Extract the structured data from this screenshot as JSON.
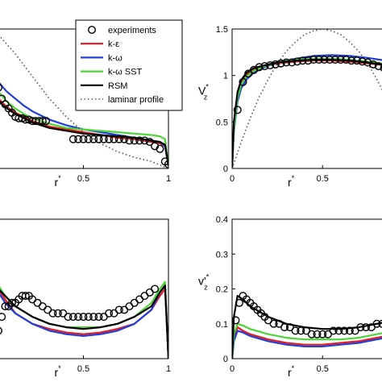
{
  "legend": {
    "placement": "top-center",
    "entries": [
      {
        "label": "experiments",
        "color": "#000000",
        "style": "marker-circle"
      },
      {
        "label": "k-ε",
        "color": "#e41a1c",
        "style": "line"
      },
      {
        "label": "k-ω",
        "color": "#1f3fd9",
        "style": "line"
      },
      {
        "label": "k-ω SST",
        "color": "#4cd636",
        "style": "line"
      },
      {
        "label": "RSM",
        "color": "#000000",
        "style": "line"
      },
      {
        "label": "laminar profile",
        "color": "#555555",
        "style": "dotted"
      }
    ]
  },
  "chart_data": [
    {
      "id": "top-left",
      "type": "line",
      "xlabel": "r",
      "xlabel_sup": "*",
      "ylabel": "",
      "xlim": [
        0,
        1
      ],
      "ylim": [
        0,
        1
      ],
      "xticks": [
        "0.5",
        "1"
      ],
      "yticks": [],
      "series": [
        {
          "name": "experiments",
          "marker": "circle",
          "x": [
            0.0,
            0.02,
            0.04,
            0.06,
            0.08,
            0.1,
            0.12,
            0.14,
            0.16,
            0.18,
            0.2,
            0.22,
            0.24,
            0.26,
            0.28,
            0.44,
            0.47,
            0.5,
            0.53,
            0.56,
            0.59,
            0.62,
            0.65,
            0.68,
            0.71,
            0.74,
            0.77,
            0.8,
            0.83,
            0.86,
            0.89,
            0.92,
            0.95,
            0.98,
            1.0
          ],
          "y": [
            0.58,
            0.5,
            0.46,
            0.43,
            0.4,
            0.37,
            0.36,
            0.36,
            0.35,
            0.35,
            0.34,
            0.34,
            0.34,
            0.34,
            0.34,
            0.21,
            0.21,
            0.21,
            0.21,
            0.21,
            0.21,
            0.21,
            0.21,
            0.21,
            0.21,
            0.21,
            0.2,
            0.2,
            0.2,
            0.2,
            0.19,
            0.16,
            0.14,
            0.05,
            0.03
          ]
        },
        {
          "name": "k-ε",
          "x": [
            0.0,
            0.05,
            0.1,
            0.15,
            0.2,
            0.3,
            0.4,
            0.5,
            0.6,
            0.7,
            0.8,
            0.9,
            0.95,
            0.98,
            1.0
          ],
          "y": [
            0.5,
            0.44,
            0.4,
            0.37,
            0.34,
            0.3,
            0.28,
            0.26,
            0.24,
            0.22,
            0.21,
            0.19,
            0.18,
            0.16,
            0.02
          ]
        },
        {
          "name": "k-ω",
          "x": [
            0.0,
            0.05,
            0.1,
            0.15,
            0.2,
            0.3,
            0.4,
            0.5,
            0.6,
            0.7,
            0.8,
            0.9,
            0.95,
            0.98,
            1.0
          ],
          "y": [
            0.62,
            0.55,
            0.5,
            0.45,
            0.41,
            0.35,
            0.31,
            0.28,
            0.26,
            0.24,
            0.22,
            0.2,
            0.19,
            0.16,
            0.02
          ]
        },
        {
          "name": "k-ω SST",
          "x": [
            0.0,
            0.05,
            0.1,
            0.15,
            0.2,
            0.3,
            0.4,
            0.5,
            0.6,
            0.7,
            0.8,
            0.9,
            0.95,
            0.98,
            1.0
          ],
          "y": [
            0.55,
            0.48,
            0.43,
            0.39,
            0.36,
            0.32,
            0.29,
            0.28,
            0.27,
            0.26,
            0.25,
            0.24,
            0.23,
            0.21,
            0.02
          ]
        },
        {
          "name": "RSM",
          "x": [
            0.0,
            0.05,
            0.1,
            0.15,
            0.2,
            0.3,
            0.4,
            0.5,
            0.6,
            0.7,
            0.8,
            0.9,
            0.95,
            0.98,
            1.0
          ],
          "y": [
            0.48,
            0.43,
            0.39,
            0.36,
            0.33,
            0.29,
            0.27,
            0.25,
            0.24,
            0.23,
            0.22,
            0.2,
            0.19,
            0.17,
            0.02
          ]
        },
        {
          "name": "laminar profile",
          "dotted": true,
          "x": [
            0.0,
            0.1,
            0.2,
            0.3,
            0.4,
            0.5,
            0.6,
            0.7,
            0.8,
            0.9,
            1.0
          ],
          "y": [
            0.96,
            0.82,
            0.66,
            0.5,
            0.37,
            0.26,
            0.18,
            0.12,
            0.08,
            0.05,
            0.0
          ]
        }
      ]
    },
    {
      "id": "top-right",
      "type": "line",
      "xlabel": "r",
      "xlabel_sup": "*",
      "ylabel": "V",
      "ylabel_sub": "z",
      "ylabel_sup": "*",
      "xlim": [
        0,
        0.9
      ],
      "ylim": [
        0,
        1.5
      ],
      "xticks": [
        "0",
        "0.5"
      ],
      "yticks": [
        "0",
        "0.5",
        "1",
        "1.5"
      ],
      "series": [
        {
          "name": "experiments",
          "marker": "circle",
          "x": [
            0.03,
            0.06,
            0.09,
            0.12,
            0.15,
            0.18,
            0.21,
            0.24,
            0.27,
            0.3,
            0.33,
            0.36,
            0.39,
            0.42,
            0.45,
            0.48,
            0.51,
            0.54,
            0.57,
            0.6,
            0.63,
            0.66,
            0.69,
            0.72,
            0.75,
            0.78,
            0.81,
            0.84,
            0.87
          ],
          "y": [
            0.63,
            0.93,
            1.02,
            1.06,
            1.09,
            1.1,
            1.11,
            1.12,
            1.13,
            1.14,
            1.14,
            1.15,
            1.16,
            1.16,
            1.17,
            1.17,
            1.17,
            1.17,
            1.17,
            1.17,
            1.17,
            1.16,
            1.16,
            1.15,
            1.14,
            1.12,
            1.1,
            1.08,
            1.06
          ]
        },
        {
          "name": "k-ε",
          "x": [
            0.0,
            0.01,
            0.03,
            0.05,
            0.08,
            0.12,
            0.18,
            0.25,
            0.35,
            0.45,
            0.55,
            0.65,
            0.75,
            0.85,
            0.9
          ],
          "y": [
            0.0,
            0.45,
            0.78,
            0.92,
            1.01,
            1.06,
            1.1,
            1.13,
            1.15,
            1.16,
            1.16,
            1.15,
            1.13,
            1.11,
            1.1
          ]
        },
        {
          "name": "k-ω",
          "x": [
            0.0,
            0.01,
            0.03,
            0.05,
            0.08,
            0.12,
            0.18,
            0.25,
            0.35,
            0.45,
            0.55,
            0.65,
            0.75,
            0.85,
            0.9
          ],
          "y": [
            0.0,
            0.4,
            0.72,
            0.86,
            0.96,
            1.03,
            1.09,
            1.14,
            1.18,
            1.21,
            1.22,
            1.21,
            1.19,
            1.16,
            1.14
          ]
        },
        {
          "name": "k-ω SST",
          "x": [
            0.0,
            0.01,
            0.03,
            0.05,
            0.08,
            0.12,
            0.18,
            0.25,
            0.35,
            0.45,
            0.55,
            0.65,
            0.75,
            0.85,
            0.9
          ],
          "y": [
            0.0,
            0.42,
            0.76,
            0.9,
            0.99,
            1.05,
            1.1,
            1.14,
            1.17,
            1.18,
            1.18,
            1.17,
            1.15,
            1.12,
            1.11
          ]
        },
        {
          "name": "RSM",
          "x": [
            0.0,
            0.01,
            0.03,
            0.05,
            0.08,
            0.12,
            0.18,
            0.25,
            0.35,
            0.45,
            0.55,
            0.65,
            0.75,
            0.85,
            0.9
          ],
          "y": [
            0.0,
            0.5,
            0.82,
            0.95,
            1.03,
            1.08,
            1.11,
            1.14,
            1.16,
            1.17,
            1.17,
            1.16,
            1.14,
            1.11,
            1.1
          ]
        },
        {
          "name": "laminar profile",
          "dotted": true,
          "x": [
            0.0,
            0.05,
            0.1,
            0.15,
            0.2,
            0.25,
            0.3,
            0.35,
            0.4,
            0.45,
            0.5,
            0.55,
            0.6,
            0.65,
            0.7,
            0.75,
            0.8,
            0.85,
            0.9
          ],
          "y": [
            0.0,
            0.28,
            0.54,
            0.77,
            0.96,
            1.13,
            1.26,
            1.36,
            1.44,
            1.48,
            1.5,
            1.48,
            1.44,
            1.36,
            1.26,
            1.13,
            0.96,
            0.77,
            0.54
          ]
        }
      ]
    },
    {
      "id": "bottom-left",
      "type": "line",
      "xlabel": "r",
      "xlabel_sup": "*",
      "ylabel": "",
      "xlim": [
        0,
        1
      ],
      "ylim": [
        0,
        0.4
      ],
      "xticks": [
        "0.5",
        "1"
      ],
      "yticks": [],
      "series": [
        {
          "name": "experiments",
          "marker": "circle",
          "x": [
            0.0,
            0.02,
            0.04,
            0.06,
            0.08,
            0.1,
            0.12,
            0.14,
            0.16,
            0.18,
            0.2,
            0.23,
            0.26,
            0.29,
            0.32,
            0.35,
            0.38,
            0.41,
            0.44,
            0.47,
            0.5,
            0.53,
            0.56,
            0.59,
            0.62,
            0.65,
            0.68,
            0.71,
            0.74,
            0.77,
            0.8,
            0.83,
            0.86,
            0.89,
            0.92
          ],
          "y": [
            0.08,
            0.12,
            0.15,
            0.15,
            0.16,
            0.16,
            0.17,
            0.18,
            0.18,
            0.18,
            0.17,
            0.16,
            0.15,
            0.14,
            0.13,
            0.13,
            0.13,
            0.12,
            0.12,
            0.12,
            0.12,
            0.12,
            0.12,
            0.12,
            0.12,
            0.13,
            0.13,
            0.14,
            0.14,
            0.15,
            0.16,
            0.17,
            0.18,
            0.19,
            0.2
          ]
        },
        {
          "name": "k-ε",
          "x": [
            0.0,
            0.04,
            0.1,
            0.2,
            0.3,
            0.4,
            0.5,
            0.6,
            0.7,
            0.8,
            0.9,
            0.95,
            0.98,
            1.0
          ],
          "y": [
            0.2,
            0.17,
            0.13,
            0.1,
            0.085,
            0.075,
            0.07,
            0.075,
            0.085,
            0.1,
            0.14,
            0.18,
            0.2,
            0.0
          ]
        },
        {
          "name": "k-ω",
          "x": [
            0.0,
            0.04,
            0.1,
            0.2,
            0.3,
            0.4,
            0.5,
            0.6,
            0.7,
            0.8,
            0.9,
            0.95,
            0.98,
            1.0
          ],
          "y": [
            0.19,
            0.16,
            0.13,
            0.1,
            0.08,
            0.07,
            0.065,
            0.07,
            0.08,
            0.1,
            0.14,
            0.19,
            0.21,
            0.0
          ]
        },
        {
          "name": "k-ω SST",
          "x": [
            0.0,
            0.04,
            0.1,
            0.2,
            0.3,
            0.4,
            0.5,
            0.6,
            0.7,
            0.8,
            0.9,
            0.95,
            0.98,
            1.0
          ],
          "y": [
            0.21,
            0.18,
            0.15,
            0.12,
            0.1,
            0.09,
            0.09,
            0.09,
            0.1,
            0.12,
            0.16,
            0.2,
            0.22,
            0.0
          ]
        },
        {
          "name": "RSM",
          "x": [
            0.0,
            0.04,
            0.1,
            0.2,
            0.3,
            0.4,
            0.5,
            0.6,
            0.7,
            0.8,
            0.9,
            0.95,
            0.98,
            1.0
          ],
          "y": [
            0.2,
            0.18,
            0.15,
            0.12,
            0.1,
            0.09,
            0.085,
            0.09,
            0.1,
            0.12,
            0.15,
            0.19,
            0.21,
            0.0
          ]
        }
      ]
    },
    {
      "id": "bottom-right",
      "type": "line",
      "xlabel": "r",
      "xlabel_sup": "*",
      "ylabel": "v'",
      "ylabel_sub": "z",
      "ylabel_sup": "*",
      "xlim": [
        0,
        0.9
      ],
      "ylim": [
        0,
        0.4
      ],
      "xticks": [
        "0",
        "0.5"
      ],
      "yticks": [
        "0",
        "0.1",
        "0.2",
        "0.3",
        "0.4"
      ],
      "series": [
        {
          "name": "experiments",
          "marker": "circle",
          "x": [
            0.02,
            0.04,
            0.06,
            0.08,
            0.1,
            0.12,
            0.14,
            0.16,
            0.18,
            0.2,
            0.23,
            0.26,
            0.29,
            0.32,
            0.35,
            0.38,
            0.41,
            0.44,
            0.47,
            0.5,
            0.53,
            0.56,
            0.59,
            0.62,
            0.65,
            0.68,
            0.71,
            0.74,
            0.77,
            0.8,
            0.83,
            0.86,
            0.89
          ],
          "y": [
            0.11,
            0.16,
            0.18,
            0.17,
            0.16,
            0.15,
            0.14,
            0.13,
            0.12,
            0.11,
            0.1,
            0.1,
            0.09,
            0.09,
            0.08,
            0.08,
            0.08,
            0.07,
            0.07,
            0.07,
            0.07,
            0.08,
            0.08,
            0.08,
            0.08,
            0.08,
            0.09,
            0.09,
            0.09,
            0.1,
            0.1,
            0.11,
            0.11
          ]
        },
        {
          "name": "k-ε",
          "x": [
            0.0,
            0.01,
            0.03,
            0.06,
            0.1,
            0.2,
            0.3,
            0.4,
            0.5,
            0.6,
            0.7,
            0.8,
            0.9
          ],
          "y": [
            0.0,
            0.06,
            0.09,
            0.08,
            0.07,
            0.055,
            0.045,
            0.04,
            0.04,
            0.045,
            0.05,
            0.06,
            0.07
          ]
        },
        {
          "name": "k-ω",
          "x": [
            0.0,
            0.01,
            0.03,
            0.06,
            0.1,
            0.2,
            0.3,
            0.4,
            0.5,
            0.6,
            0.7,
            0.8,
            0.9
          ],
          "y": [
            0.0,
            0.05,
            0.08,
            0.075,
            0.065,
            0.05,
            0.04,
            0.035,
            0.035,
            0.04,
            0.045,
            0.055,
            0.065
          ]
        },
        {
          "name": "k-ω SST",
          "x": [
            0.0,
            0.01,
            0.03,
            0.06,
            0.1,
            0.2,
            0.3,
            0.4,
            0.5,
            0.6,
            0.7,
            0.8,
            0.9
          ],
          "y": [
            0.0,
            0.07,
            0.1,
            0.095,
            0.085,
            0.07,
            0.06,
            0.055,
            0.055,
            0.055,
            0.06,
            0.07,
            0.08
          ]
        },
        {
          "name": "RSM",
          "x": [
            0.0,
            0.01,
            0.03,
            0.06,
            0.1,
            0.2,
            0.3,
            0.4,
            0.5,
            0.6,
            0.7,
            0.8,
            0.9
          ],
          "y": [
            0.0,
            0.12,
            0.18,
            0.17,
            0.15,
            0.12,
            0.1,
            0.09,
            0.085,
            0.085,
            0.09,
            0.1,
            0.11
          ]
        }
      ]
    }
  ],
  "series_colors": {
    "experiments": "#000000",
    "k-ε": "#e41a1c",
    "k-ω": "#1f3fd9",
    "k-ω SST": "#4cd636",
    "RSM": "#000000",
    "laminar profile": "#555555"
  }
}
